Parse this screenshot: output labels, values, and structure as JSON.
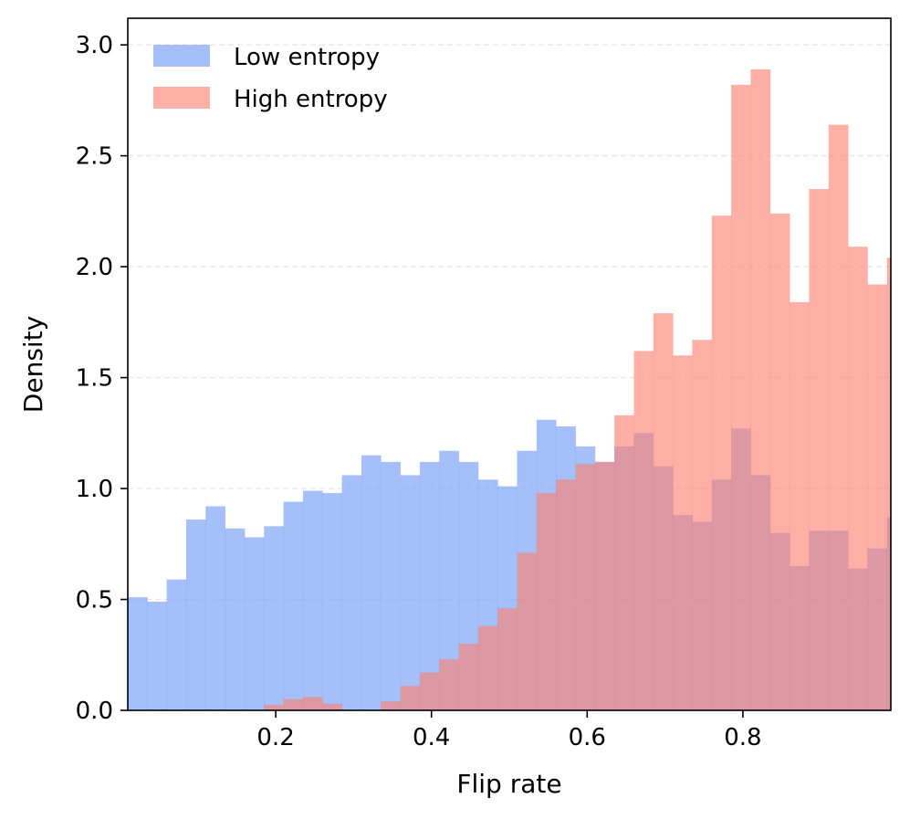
{
  "chart_data": {
    "type": "histogram",
    "xlabel": "Flip rate",
    "ylabel": "Density",
    "xlim": [
      0.01,
      0.99
    ],
    "ylim": [
      0,
      3.12
    ],
    "x_ticks": [
      0.2,
      0.4,
      0.6,
      0.8
    ],
    "x_tick_labels": [
      "0.2",
      "0.4",
      "0.6",
      "0.8"
    ],
    "y_ticks": [
      0.0,
      0.5,
      1.0,
      1.5,
      2.0,
      2.5,
      3.0
    ],
    "y_tick_labels": [
      "0.0",
      "0.5",
      "1.0",
      "1.5",
      "2.0",
      "2.5",
      "3.0"
    ],
    "grid": "horizontal dashed",
    "legend_position": "top-left",
    "bin_edges": [
      0.01,
      0.035,
      0.06,
      0.085,
      0.11,
      0.135,
      0.16,
      0.185,
      0.21,
      0.235,
      0.26,
      0.285,
      0.31,
      0.335,
      0.36,
      0.385,
      0.41,
      0.435,
      0.46,
      0.485,
      0.51,
      0.535,
      0.56,
      0.585,
      0.61,
      0.635,
      0.66,
      0.685,
      0.71,
      0.735,
      0.76,
      0.785,
      0.81,
      0.835,
      0.86,
      0.885,
      0.91,
      0.935,
      0.96,
      0.985,
      0.99
    ],
    "series": [
      {
        "name": "Low entropy",
        "color": "#7ba0f5",
        "opacity": 0.68,
        "values": [
          0.51,
          0.49,
          0.59,
          0.86,
          0.92,
          0.82,
          0.78,
          0.83,
          0.94,
          0.99,
          0.98,
          1.06,
          1.15,
          1.12,
          1.06,
          1.12,
          1.17,
          1.12,
          1.04,
          1.01,
          1.17,
          1.31,
          1.28,
          1.19,
          1.12,
          1.19,
          1.25,
          1.1,
          0.88,
          0.85,
          1.04,
          1.27,
          1.06,
          0.8,
          0.65,
          0.81,
          0.81,
          0.64,
          0.73,
          0.87
        ]
      },
      {
        "name": "High entropy",
        "color": "#fe8070",
        "opacity": 0.62,
        "values": [
          0.0,
          0.0,
          0.0,
          0.0,
          0.0,
          0.0,
          0.0,
          0.025,
          0.05,
          0.06,
          0.03,
          0.0,
          0.0,
          0.04,
          0.11,
          0.17,
          0.23,
          0.3,
          0.38,
          0.46,
          0.71,
          0.98,
          1.04,
          1.11,
          1.12,
          1.33,
          1.62,
          1.79,
          1.6,
          1.67,
          2.23,
          2.82,
          2.89,
          2.24,
          1.84,
          2.35,
          2.64,
          2.09,
          1.92,
          2.04
        ]
      }
    ]
  }
}
